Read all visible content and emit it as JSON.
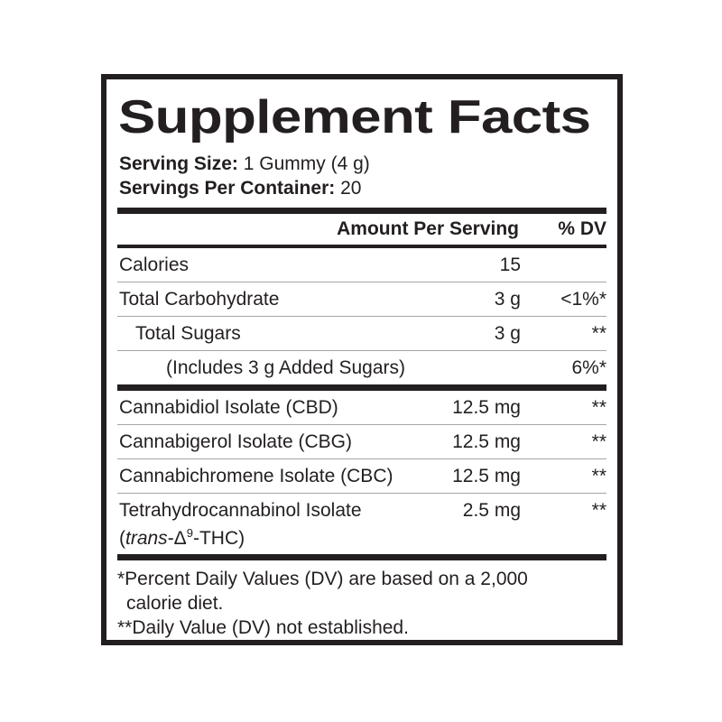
{
  "label": {
    "title": "Supplement Facts",
    "serving": {
      "size_label": "Serving Size:",
      "size_value": "1 Gummy (4 g)",
      "per_container_label": "Servings Per Container:",
      "per_container_value": "20"
    },
    "columns": {
      "amount": "Amount Per Serving",
      "dv": "% DV"
    },
    "rows": [
      {
        "name": "Calories",
        "amount": "15",
        "dv": ""
      },
      {
        "name": "Total Carbohydrate",
        "amount": "3 g",
        "dv": "<1%*"
      },
      {
        "name": "Total Sugars",
        "amount": "3 g",
        "dv": "**"
      },
      {
        "name": "(Includes 3 g Added Sugars)",
        "amount": "",
        "dv": "6%*"
      },
      {
        "name": "Cannabidiol Isolate (CBD)",
        "amount": "12.5 mg",
        "dv": "**"
      },
      {
        "name": "Cannabigerol Isolate (CBG)",
        "amount": "12.5 mg",
        "dv": "**"
      },
      {
        "name": "Cannabichromene Isolate (CBC)",
        "amount": "12.5 mg",
        "dv": "**"
      },
      {
        "name": "Tetrahydrocannabinol Isolate",
        "amount": "2.5 mg",
        "dv": "**",
        "name_line2": {
          "open": "(",
          "italic": "trans",
          "delta": "-Δ",
          "sup": "9",
          "rest": "-THC)"
        }
      }
    ],
    "footnotes": {
      "dv_note_line1": "*Percent Daily Values (DV) are based on a 2,000",
      "dv_note_line2": "calorie diet.",
      "not_established": "**Daily Value (DV) not established."
    },
    "colors": {
      "ink": "#231f20",
      "divider": "#a6a6a6",
      "background": "#ffffff"
    }
  }
}
